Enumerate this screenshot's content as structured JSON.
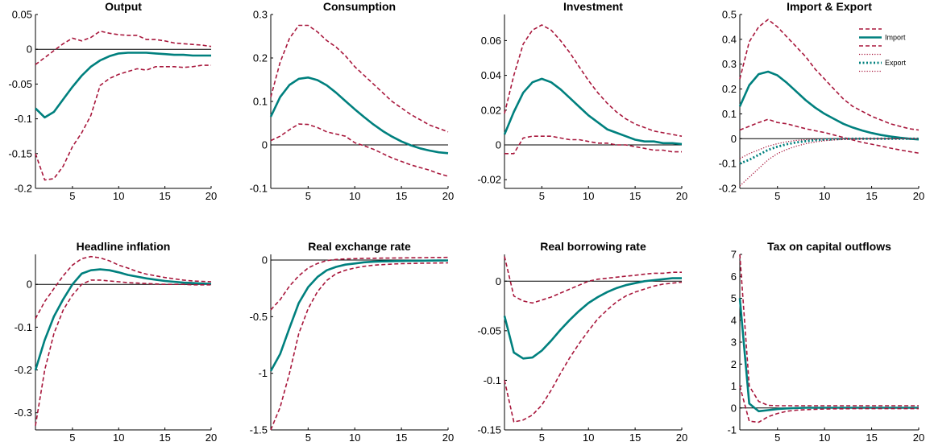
{
  "colors": {
    "median": "#00807e",
    "bands": "#a8173c",
    "zero_line": "#000000"
  },
  "chart_data": [
    {
      "type": "line",
      "title": "Output",
      "x": [
        1,
        2,
        3,
        4,
        5,
        6,
        7,
        8,
        9,
        10,
        11,
        12,
        13,
        14,
        15,
        16,
        17,
        18,
        19,
        20
      ],
      "xlim": [
        1,
        20
      ],
      "ylim": [
        -0.2,
        0.05
      ],
      "xticks": [
        "5",
        "10",
        "15",
        "20"
      ],
      "xtick_values": [
        5,
        10,
        15,
        20
      ],
      "yticks": [
        "-0.2",
        "-0.15",
        "-0.1",
        "-0.05",
        "0",
        "0.05"
      ],
      "ytick_values": [
        -0.2,
        -0.15,
        -0.1,
        -0.05,
        0,
        0.05
      ],
      "series": [
        {
          "style": "solid",
          "values": [
            -0.085,
            -0.098,
            -0.09,
            -0.072,
            -0.054,
            -0.038,
            -0.025,
            -0.016,
            -0.01,
            -0.006,
            -0.005,
            -0.005,
            -0.005,
            -0.006,
            -0.007,
            -0.008,
            -0.008,
            -0.009,
            -0.009,
            -0.009
          ]
        },
        {
          "style": "dashed",
          "values": [
            -0.022,
            -0.012,
            -0.002,
            0.008,
            0.016,
            0.012,
            0.017,
            0.026,
            0.023,
            0.021,
            0.02,
            0.02,
            0.014,
            0.014,
            0.012,
            0.009,
            0.008,
            0.007,
            0.006,
            0.004
          ]
        },
        {
          "style": "dashed",
          "values": [
            -0.15,
            -0.188,
            -0.186,
            -0.168,
            -0.14,
            -0.12,
            -0.095,
            -0.052,
            -0.042,
            -0.036,
            -0.032,
            -0.028,
            -0.03,
            -0.025,
            -0.025,
            -0.025,
            -0.026,
            -0.025,
            -0.023,
            -0.023
          ]
        }
      ]
    },
    {
      "type": "line",
      "title": "Consumption",
      "x": [
        1,
        2,
        3,
        4,
        5,
        6,
        7,
        8,
        9,
        10,
        11,
        12,
        13,
        14,
        15,
        16,
        17,
        18,
        19,
        20
      ],
      "xlim": [
        1,
        20
      ],
      "ylim": [
        -0.1,
        0.3
      ],
      "xticks": [
        "5",
        "10",
        "15",
        "20"
      ],
      "xtick_values": [
        5,
        10,
        15,
        20
      ],
      "yticks": [
        "-0.1",
        "0",
        "0.1",
        "0.2",
        "0.3"
      ],
      "ytick_values": [
        -0.1,
        0,
        0.1,
        0.2,
        0.3
      ],
      "series": [
        {
          "style": "solid",
          "values": [
            0.065,
            0.11,
            0.138,
            0.152,
            0.155,
            0.149,
            0.137,
            0.12,
            0.101,
            0.082,
            0.064,
            0.047,
            0.032,
            0.019,
            0.008,
            -0.001,
            -0.008,
            -0.013,
            -0.017,
            -0.019
          ]
        },
        {
          "style": "dashed",
          "values": [
            0.11,
            0.19,
            0.245,
            0.275,
            0.275,
            0.26,
            0.24,
            0.225,
            0.205,
            0.18,
            0.16,
            0.14,
            0.12,
            0.1,
            0.085,
            0.07,
            0.058,
            0.046,
            0.038,
            0.03
          ]
        },
        {
          "style": "dashed",
          "values": [
            0.01,
            0.02,
            0.035,
            0.048,
            0.047,
            0.04,
            0.03,
            0.025,
            0.02,
            0.005,
            -0.002,
            -0.01,
            -0.02,
            -0.03,
            -0.038,
            -0.046,
            -0.052,
            -0.058,
            -0.066,
            -0.072
          ]
        }
      ]
    },
    {
      "type": "line",
      "title": "Investment",
      "x": [
        1,
        2,
        3,
        4,
        5,
        6,
        7,
        8,
        9,
        10,
        11,
        12,
        13,
        14,
        15,
        16,
        17,
        18,
        19,
        20
      ],
      "xlim": [
        1,
        20
      ],
      "ylim": [
        -0.025,
        0.075
      ],
      "xticks": [
        "5",
        "10",
        "15",
        "20"
      ],
      "xtick_values": [
        5,
        10,
        15,
        20
      ],
      "yticks": [
        "-0.02",
        "0",
        "0.02",
        "0.04",
        "0.06"
      ],
      "ytick_values": [
        -0.02,
        0,
        0.02,
        0.04,
        0.06
      ],
      "series": [
        {
          "style": "solid",
          "values": [
            0.006,
            0.019,
            0.03,
            0.036,
            0.038,
            0.036,
            0.032,
            0.027,
            0.022,
            0.017,
            0.013,
            0.009,
            0.007,
            0.005,
            0.003,
            0.002,
            0.002,
            0.001,
            0.001,
            0.0005
          ]
        },
        {
          "style": "dashed",
          "values": [
            0.018,
            0.04,
            0.058,
            0.066,
            0.069,
            0.066,
            0.06,
            0.053,
            0.045,
            0.037,
            0.03,
            0.024,
            0.019,
            0.015,
            0.012,
            0.01,
            0.008,
            0.007,
            0.006,
            0.005
          ]
        },
        {
          "style": "dashed",
          "values": [
            -0.005,
            -0.005,
            0.004,
            0.005,
            0.005,
            0.005,
            0.004,
            0.003,
            0.003,
            0.002,
            0.001,
            0.001,
            0.0,
            0.0,
            -0.001,
            -0.002,
            -0.003,
            -0.003,
            -0.004,
            -0.004
          ]
        }
      ]
    },
    {
      "type": "line",
      "title": "Import & Export",
      "x": [
        1,
        2,
        3,
        4,
        5,
        6,
        7,
        8,
        9,
        10,
        11,
        12,
        13,
        14,
        15,
        16,
        17,
        18,
        19,
        20
      ],
      "xlim": [
        1,
        20
      ],
      "ylim": [
        -0.2,
        0.5
      ],
      "xticks": [
        "5",
        "10",
        "15",
        "20"
      ],
      "xtick_values": [
        5,
        10,
        15,
        20
      ],
      "yticks": [
        "-0.2",
        "-0.1",
        "0",
        "0.1",
        "0.2",
        "0.3",
        "0.4",
        "0.5"
      ],
      "ytick_values": [
        -0.2,
        -0.1,
        0,
        0.1,
        0.2,
        0.3,
        0.4,
        0.5
      ],
      "legend_position": "top-right",
      "legend": [
        "Import",
        "Export"
      ],
      "series": [
        {
          "style": "dashed",
          "values": [
            0.24,
            0.39,
            0.45,
            0.48,
            0.45,
            0.41,
            0.37,
            0.33,
            0.28,
            0.24,
            0.2,
            0.16,
            0.13,
            0.11,
            0.09,
            0.075,
            0.06,
            0.05,
            0.04,
            0.035
          ]
        },
        {
          "name": "Import",
          "style": "solid",
          "values": [
            0.13,
            0.215,
            0.26,
            0.27,
            0.255,
            0.225,
            0.19,
            0.155,
            0.125,
            0.1,
            0.08,
            0.06,
            0.045,
            0.033,
            0.023,
            0.015,
            0.009,
            0.004,
            0.0,
            -0.003
          ]
        },
        {
          "style": "dashed",
          "values": [
            0.035,
            0.05,
            0.065,
            0.078,
            0.065,
            0.06,
            0.05,
            0.04,
            0.032,
            0.025,
            0.015,
            0.005,
            -0.005,
            -0.015,
            -0.022,
            -0.03,
            -0.038,
            -0.045,
            -0.052,
            -0.058
          ]
        },
        {
          "style": "dotted",
          "values": [
            -0.08,
            -0.06,
            -0.045,
            -0.03,
            -0.02,
            -0.012,
            -0.007,
            -0.004,
            -0.002,
            -0.001,
            0.0,
            0.0,
            0.0,
            0.0,
            0.0,
            0.0,
            0.0,
            0.0,
            0.0,
            0.0
          ]
        },
        {
          "name": "Export",
          "style": "dotted-bold",
          "values": [
            -0.1,
            -0.085,
            -0.065,
            -0.045,
            -0.032,
            -0.022,
            -0.015,
            -0.01,
            -0.006,
            -0.004,
            -0.002,
            -0.001,
            0.0,
            0.0,
            0.0,
            0.0,
            0.0,
            0.0,
            0.0,
            0.0
          ]
        },
        {
          "style": "dotted",
          "values": [
            -0.19,
            -0.155,
            -0.12,
            -0.085,
            -0.06,
            -0.043,
            -0.03,
            -0.02,
            -0.013,
            -0.008,
            -0.005,
            -0.003,
            -0.002,
            -0.001,
            0.0,
            0.0,
            0.0,
            0.0,
            0.0,
            0.0
          ]
        }
      ]
    },
    {
      "type": "line",
      "title": "Headline inflation",
      "x": [
        1,
        2,
        3,
        4,
        5,
        6,
        7,
        8,
        9,
        10,
        11,
        12,
        13,
        14,
        15,
        16,
        17,
        18,
        19,
        20
      ],
      "xlim": [
        1,
        20
      ],
      "ylim": [
        -0.34,
        0.07
      ],
      "xticks": [
        "5",
        "10",
        "15",
        "20"
      ],
      "xtick_values": [
        5,
        10,
        15,
        20
      ],
      "yticks": [
        "-0.3",
        "-0.2",
        "-0.1",
        "0"
      ],
      "ytick_values": [
        -0.3,
        -0.2,
        -0.1,
        0
      ],
      "series": [
        {
          "style": "solid",
          "values": [
            -0.2,
            -0.13,
            -0.075,
            -0.035,
            0.0,
            0.025,
            0.033,
            0.035,
            0.033,
            0.028,
            0.022,
            0.018,
            0.014,
            0.011,
            0.008,
            0.006,
            0.004,
            0.003,
            0.002,
            0.001
          ]
        },
        {
          "style": "dashed",
          "values": [
            -0.08,
            -0.04,
            -0.01,
            0.02,
            0.045,
            0.06,
            0.065,
            0.062,
            0.055,
            0.045,
            0.038,
            0.03,
            0.024,
            0.02,
            0.016,
            0.013,
            0.01,
            0.008,
            0.007,
            0.006
          ]
        },
        {
          "style": "dashed",
          "values": [
            -0.33,
            -0.2,
            -0.115,
            -0.06,
            -0.025,
            0.0,
            0.01,
            0.01,
            0.008,
            0.006,
            0.004,
            0.003,
            0.002,
            0.001,
            0.0,
            0.0,
            0.0,
            -0.001,
            -0.001,
            -0.001
          ]
        }
      ]
    },
    {
      "type": "line",
      "title": "Real exchange rate",
      "x": [
        1,
        2,
        3,
        4,
        5,
        6,
        7,
        8,
        9,
        10,
        11,
        12,
        13,
        14,
        15,
        16,
        17,
        18,
        19,
        20
      ],
      "xlim": [
        1,
        20
      ],
      "ylim": [
        -1.5,
        0.05
      ],
      "xticks": [
        "5",
        "10",
        "15",
        "20"
      ],
      "xtick_values": [
        5,
        10,
        15,
        20
      ],
      "yticks": [
        "-1.5",
        "-1",
        "-0.5",
        "0"
      ],
      "ytick_values": [
        -1.5,
        -1,
        -0.5,
        0
      ],
      "series": [
        {
          "style": "solid",
          "values": [
            -0.98,
            -0.83,
            -0.6,
            -0.38,
            -0.24,
            -0.15,
            -0.09,
            -0.06,
            -0.04,
            -0.03,
            -0.02,
            -0.015,
            -0.012,
            -0.01,
            -0.008,
            -0.007,
            -0.006,
            -0.005,
            -0.004,
            -0.003
          ]
        },
        {
          "style": "dashed",
          "values": [
            -0.44,
            -0.35,
            -0.23,
            -0.14,
            -0.07,
            -0.03,
            -0.005,
            0.005,
            0.01,
            0.012,
            0.015,
            0.016,
            0.017,
            0.018,
            0.019,
            0.02,
            0.021,
            0.022,
            0.023,
            0.024
          ]
        },
        {
          "style": "dashed",
          "values": [
            -1.5,
            -1.3,
            -1.0,
            -0.65,
            -0.43,
            -0.28,
            -0.18,
            -0.12,
            -0.09,
            -0.07,
            -0.055,
            -0.045,
            -0.04,
            -0.035,
            -0.032,
            -0.03,
            -0.028,
            -0.027,
            -0.026,
            -0.025
          ]
        }
      ]
    },
    {
      "type": "line",
      "title": "Real borrowing rate",
      "x": [
        1,
        2,
        3,
        4,
        5,
        6,
        7,
        8,
        9,
        10,
        11,
        12,
        13,
        14,
        15,
        16,
        17,
        18,
        19,
        20
      ],
      "xlim": [
        1,
        20
      ],
      "ylim": [
        -0.15,
        0.027
      ],
      "xticks": [
        "5",
        "10",
        "15",
        "20"
      ],
      "xtick_values": [
        5,
        10,
        15,
        20
      ],
      "yticks": [
        "-0.15",
        "-0.1",
        "-0.05",
        "0"
      ],
      "ytick_values": [
        -0.15,
        -0.1,
        -0.05,
        0
      ],
      "series": [
        {
          "style": "solid",
          "values": [
            -0.035,
            -0.072,
            -0.078,
            -0.077,
            -0.07,
            -0.06,
            -0.049,
            -0.039,
            -0.03,
            -0.022,
            -0.016,
            -0.011,
            -0.007,
            -0.004,
            -0.002,
            0.0,
            0.001,
            0.002,
            0.003,
            0.003
          ]
        },
        {
          "style": "dashed",
          "values": [
            0.025,
            -0.015,
            -0.02,
            -0.022,
            -0.019,
            -0.016,
            -0.012,
            -0.008,
            -0.004,
            0.0,
            0.002,
            0.003,
            0.004,
            0.005,
            0.006,
            0.007,
            0.008,
            0.008,
            0.009,
            0.009
          ]
        },
        {
          "style": "dashed",
          "values": [
            -0.1,
            -0.142,
            -0.14,
            -0.135,
            -0.125,
            -0.11,
            -0.093,
            -0.077,
            -0.063,
            -0.05,
            -0.038,
            -0.029,
            -0.021,
            -0.015,
            -0.011,
            -0.008,
            -0.005,
            -0.003,
            -0.002,
            -0.001
          ]
        }
      ]
    },
    {
      "type": "line",
      "title": "Tax on capital outflows",
      "x": [
        1,
        2,
        3,
        4,
        5,
        6,
        7,
        8,
        9,
        10,
        11,
        12,
        13,
        14,
        15,
        16,
        17,
        18,
        19,
        20
      ],
      "xlim": [
        1,
        20
      ],
      "ylim": [
        -1,
        7
      ],
      "xticks": [
        "5",
        "10",
        "15",
        "20"
      ],
      "xtick_values": [
        5,
        10,
        15,
        20
      ],
      "yticks": [
        "-1",
        "0",
        "1",
        "2",
        "3",
        "4",
        "5",
        "6",
        "7"
      ],
      "ytick_values": [
        -1,
        0,
        1,
        2,
        3,
        4,
        5,
        6,
        7
      ],
      "series": [
        {
          "style": "solid",
          "values": [
            5.0,
            0.2,
            -0.15,
            -0.1,
            -0.05,
            -0.02,
            0.0,
            0.01,
            0.01,
            0.01,
            0.01,
            0.01,
            0.01,
            0.01,
            0.01,
            0.01,
            0.01,
            0.01,
            0.01,
            0.01
          ]
        },
        {
          "style": "dashed",
          "values": [
            7.0,
            1.0,
            0.3,
            0.12,
            0.1,
            0.1,
            0.1,
            0.1,
            0.1,
            0.1,
            0.1,
            0.1,
            0.1,
            0.1,
            0.1,
            0.1,
            0.1,
            0.1,
            0.1,
            0.1
          ]
        },
        {
          "style": "dashed",
          "values": [
            1.0,
            -0.6,
            -0.65,
            -0.4,
            -0.25,
            -0.15,
            -0.1,
            -0.08,
            -0.06,
            -0.05,
            -0.04,
            -0.04,
            -0.03,
            -0.03,
            -0.03,
            -0.03,
            -0.03,
            -0.03,
            -0.03,
            -0.03
          ]
        }
      ]
    }
  ]
}
